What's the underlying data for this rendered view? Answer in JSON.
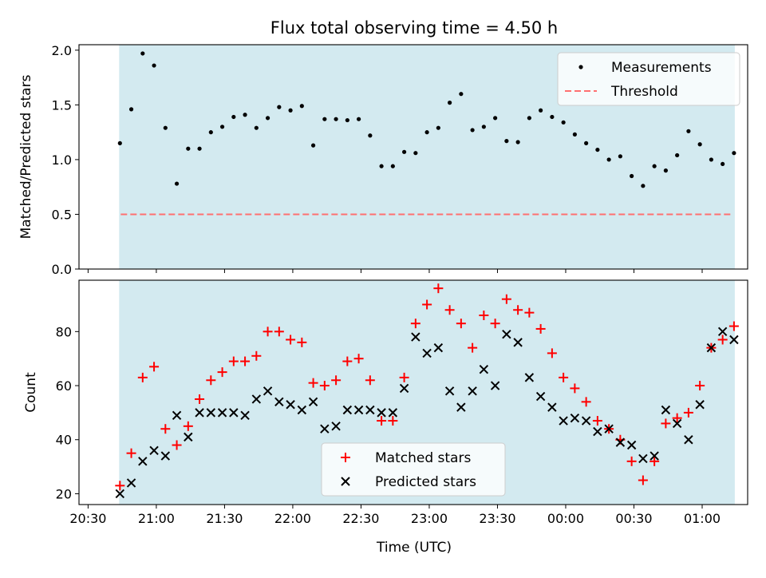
{
  "title": "Flux total observing time = 4.50 h",
  "colors": {
    "shade": "#d3eaf0",
    "measurement": "#000000",
    "threshold": "#ff7070",
    "matched": "#ff0000",
    "predicted": "#000000"
  },
  "chart_data": [
    {
      "type": "scatter",
      "ylabel": "Matched/Predicted stars",
      "ylim": [
        0,
        2.05
      ],
      "yticks": [
        "0.0",
        "0.5",
        "1.0",
        "1.5",
        "2.0"
      ],
      "x_time_start": "20:44",
      "x_step_minutes": 5,
      "legend_position": "top-right",
      "series": [
        {
          "name": "Measurements",
          "values": [
            1.15,
            1.46,
            1.97,
            1.86,
            1.29,
            0.78,
            1.1,
            1.1,
            1.25,
            1.3,
            1.39,
            1.41,
            1.29,
            1.38,
            1.48,
            1.45,
            1.49,
            1.13,
            1.37,
            1.37,
            1.36,
            1.37,
            1.22,
            0.94,
            0.94,
            1.07,
            1.06,
            1.25,
            1.29,
            1.52,
            1.6,
            1.27,
            1.3,
            1.38,
            1.17,
            1.16,
            1.38,
            1.45,
            1.39,
            1.34,
            1.23,
            1.15,
            1.09,
            1.0,
            1.03,
            0.85,
            0.76,
            0.94,
            0.9,
            1.04,
            1.26,
            1.14,
            1.0,
            0.96,
            1.06
          ]
        },
        {
          "name": "Threshold",
          "value": 0.5
        }
      ]
    },
    {
      "type": "scatter",
      "xlabel": "Time (UTC)",
      "ylabel": "Count",
      "ylim": [
        16,
        99
      ],
      "yticks": [
        "20",
        "40",
        "60",
        "80"
      ],
      "xticks": [
        "20:30",
        "21:00",
        "21:30",
        "22:00",
        "22:30",
        "23:00",
        "23:30",
        "00:00",
        "00:30",
        "01:00"
      ],
      "legend_position": "bottom-center",
      "series": [
        {
          "name": "Matched stars",
          "values": [
            23,
            35,
            63,
            67,
            44,
            38,
            45,
            55,
            62,
            65,
            69,
            69,
            71,
            80,
            80,
            77,
            76,
            61,
            60,
            62,
            69,
            70,
            62,
            47,
            47,
            63,
            83,
            90,
            96,
            88,
            83,
            74,
            86,
            83,
            92,
            88,
            87,
            81,
            72,
            63,
            59,
            54,
            47,
            44,
            40,
            32,
            25,
            32,
            46,
            48,
            50,
            60,
            74,
            77,
            82
          ]
        },
        {
          "name": "Predicted stars",
          "values": [
            20,
            24,
            32,
            36,
            34,
            49,
            41,
            50,
            50,
            50,
            50,
            49,
            55,
            58,
            54,
            53,
            51,
            54,
            44,
            45,
            51,
            51,
            51,
            50,
            50,
            59,
            78,
            72,
            74,
            58,
            52,
            58,
            66,
            60,
            79,
            76,
            63,
            56,
            52,
            47,
            48,
            47,
            43,
            44,
            39,
            38,
            33,
            34,
            51,
            46,
            40,
            53,
            74,
            80,
            77
          ]
        }
      ]
    }
  ]
}
